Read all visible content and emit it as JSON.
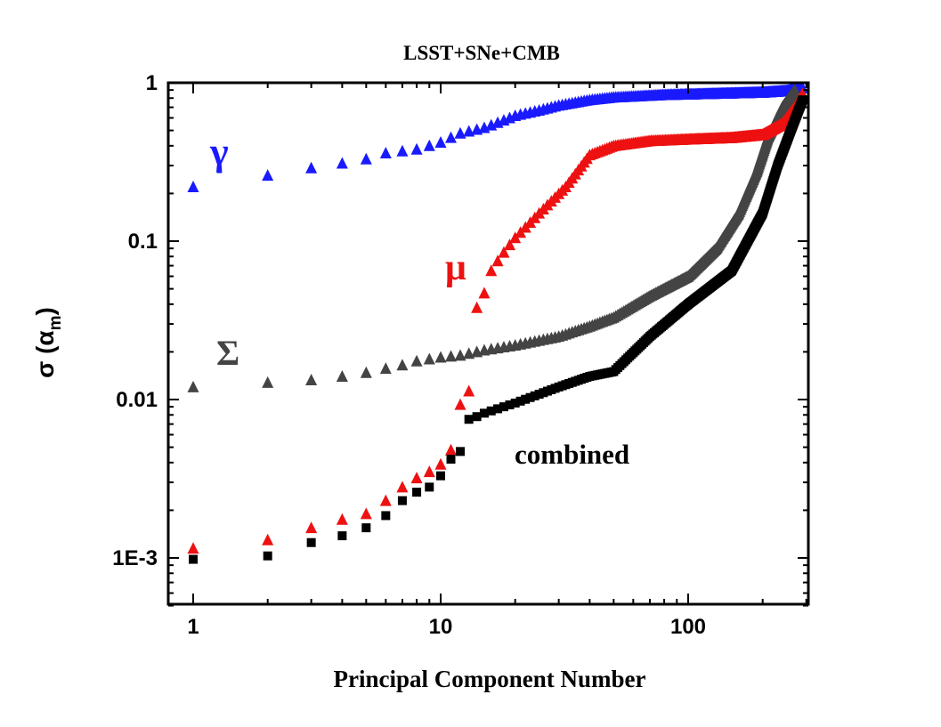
{
  "chart_data": {
    "type": "scatter",
    "title": "LSST+SNe+CMB",
    "xlabel": "Principal Component Number",
    "ylabel_main": "σ (α",
    "ylabel_sub": "m",
    "ylabel_close": ")",
    "xscale": "log",
    "yscale": "log",
    "xlim": [
      0.8,
      300
    ],
    "ylim": [
      0.0005,
      1
    ],
    "x_ticks": [
      {
        "value": 1,
        "label": "1"
      },
      {
        "value": 10,
        "label": "10"
      },
      {
        "value": 100,
        "label": "100"
      }
    ],
    "y_ticks": [
      {
        "value": 0.001,
        "label": "1E-3"
      },
      {
        "value": 0.01,
        "label": "0.01"
      },
      {
        "value": 0.1,
        "label": "0.1"
      },
      {
        "value": 1,
        "label": "1"
      }
    ],
    "colors": {
      "gamma": "#1a1aff",
      "mu": "#ee1111",
      "sigma": "#444444",
      "combined": "#000000"
    },
    "annotations": [
      {
        "key": "gamma",
        "text": "γ"
      },
      {
        "key": "mu",
        "text": "μ"
      },
      {
        "key": "sigma",
        "text": "Σ"
      },
      {
        "key": "combined",
        "text": "combined"
      }
    ],
    "series": [
      {
        "name": "gamma",
        "marker": "triangle",
        "anchors": [
          [
            1,
            0.22
          ],
          [
            2,
            0.26
          ],
          [
            3,
            0.29
          ],
          [
            4,
            0.31
          ],
          [
            5,
            0.33
          ],
          [
            6,
            0.36
          ],
          [
            8,
            0.38
          ],
          [
            10,
            0.42
          ],
          [
            12,
            0.48
          ],
          [
            15,
            0.52
          ],
          [
            18,
            0.58
          ],
          [
            20,
            0.62
          ],
          [
            25,
            0.67
          ],
          [
            30,
            0.72
          ],
          [
            40,
            0.78
          ],
          [
            50,
            0.81
          ],
          [
            80,
            0.84
          ],
          [
            150,
            0.86
          ],
          [
            200,
            0.87
          ],
          [
            250,
            0.89
          ],
          [
            290,
            0.93
          ]
        ]
      },
      {
        "name": "mu",
        "marker": "triangle",
        "anchors": [
          [
            1,
            0.00115
          ],
          [
            2,
            0.0013
          ],
          [
            3,
            0.00155
          ],
          [
            4,
            0.00175
          ],
          [
            5,
            0.0019
          ],
          [
            6,
            0.0023
          ],
          [
            7,
            0.0028
          ],
          [
            8,
            0.0032
          ],
          [
            9,
            0.0035
          ],
          [
            10,
            0.0039
          ],
          [
            11,
            0.0048
          ],
          [
            12,
            0.0093
          ],
          [
            13,
            0.0113
          ],
          [
            14,
            0.038
          ],
          [
            15,
            0.047
          ],
          [
            16,
            0.065
          ],
          [
            17,
            0.075
          ],
          [
            18,
            0.085
          ],
          [
            20,
            0.105
          ],
          [
            25,
            0.15
          ],
          [
            32,
            0.22
          ],
          [
            40,
            0.35
          ],
          [
            50,
            0.4
          ],
          [
            70,
            0.43
          ],
          [
            100,
            0.44
          ],
          [
            150,
            0.45
          ],
          [
            200,
            0.47
          ],
          [
            240,
            0.55
          ],
          [
            270,
            0.7
          ],
          [
            290,
            0.85
          ]
        ]
      },
      {
        "name": "sigma",
        "marker": "triangle",
        "anchors": [
          [
            1,
            0.012
          ],
          [
            2,
            0.0128
          ],
          [
            3,
            0.0133
          ],
          [
            4,
            0.014
          ],
          [
            5,
            0.0148
          ],
          [
            6,
            0.0157
          ],
          [
            7,
            0.0165
          ],
          [
            8,
            0.0175
          ],
          [
            10,
            0.0185
          ],
          [
            12,
            0.019
          ],
          [
            15,
            0.0205
          ],
          [
            20,
            0.022
          ],
          [
            30,
            0.025
          ],
          [
            40,
            0.029
          ],
          [
            50,
            0.033
          ],
          [
            70,
            0.045
          ],
          [
            100,
            0.06
          ],
          [
            130,
            0.09
          ],
          [
            160,
            0.15
          ],
          [
            190,
            0.28
          ],
          [
            210,
            0.45
          ],
          [
            240,
            0.7
          ],
          [
            270,
            0.9
          ]
        ]
      },
      {
        "name": "combined",
        "marker": "square",
        "anchors": [
          [
            1,
            0.00098
          ],
          [
            2,
            0.00103
          ],
          [
            3,
            0.00125
          ],
          [
            4,
            0.00138
          ],
          [
            5,
            0.00155
          ],
          [
            6,
            0.00185
          ],
          [
            7,
            0.0023
          ],
          [
            8,
            0.0026
          ],
          [
            9,
            0.0028
          ],
          [
            10,
            0.0033
          ],
          [
            11,
            0.0042
          ],
          [
            12,
            0.0047
          ],
          [
            13,
            0.0075
          ],
          [
            14,
            0.0078
          ],
          [
            15,
            0.0082
          ],
          [
            20,
            0.0095
          ],
          [
            30,
            0.012
          ],
          [
            40,
            0.014
          ],
          [
            50,
            0.015
          ],
          [
            70,
            0.025
          ],
          [
            100,
            0.04
          ],
          [
            150,
            0.065
          ],
          [
            200,
            0.15
          ],
          [
            230,
            0.3
          ],
          [
            260,
            0.5
          ],
          [
            290,
            0.78
          ]
        ]
      }
    ]
  }
}
